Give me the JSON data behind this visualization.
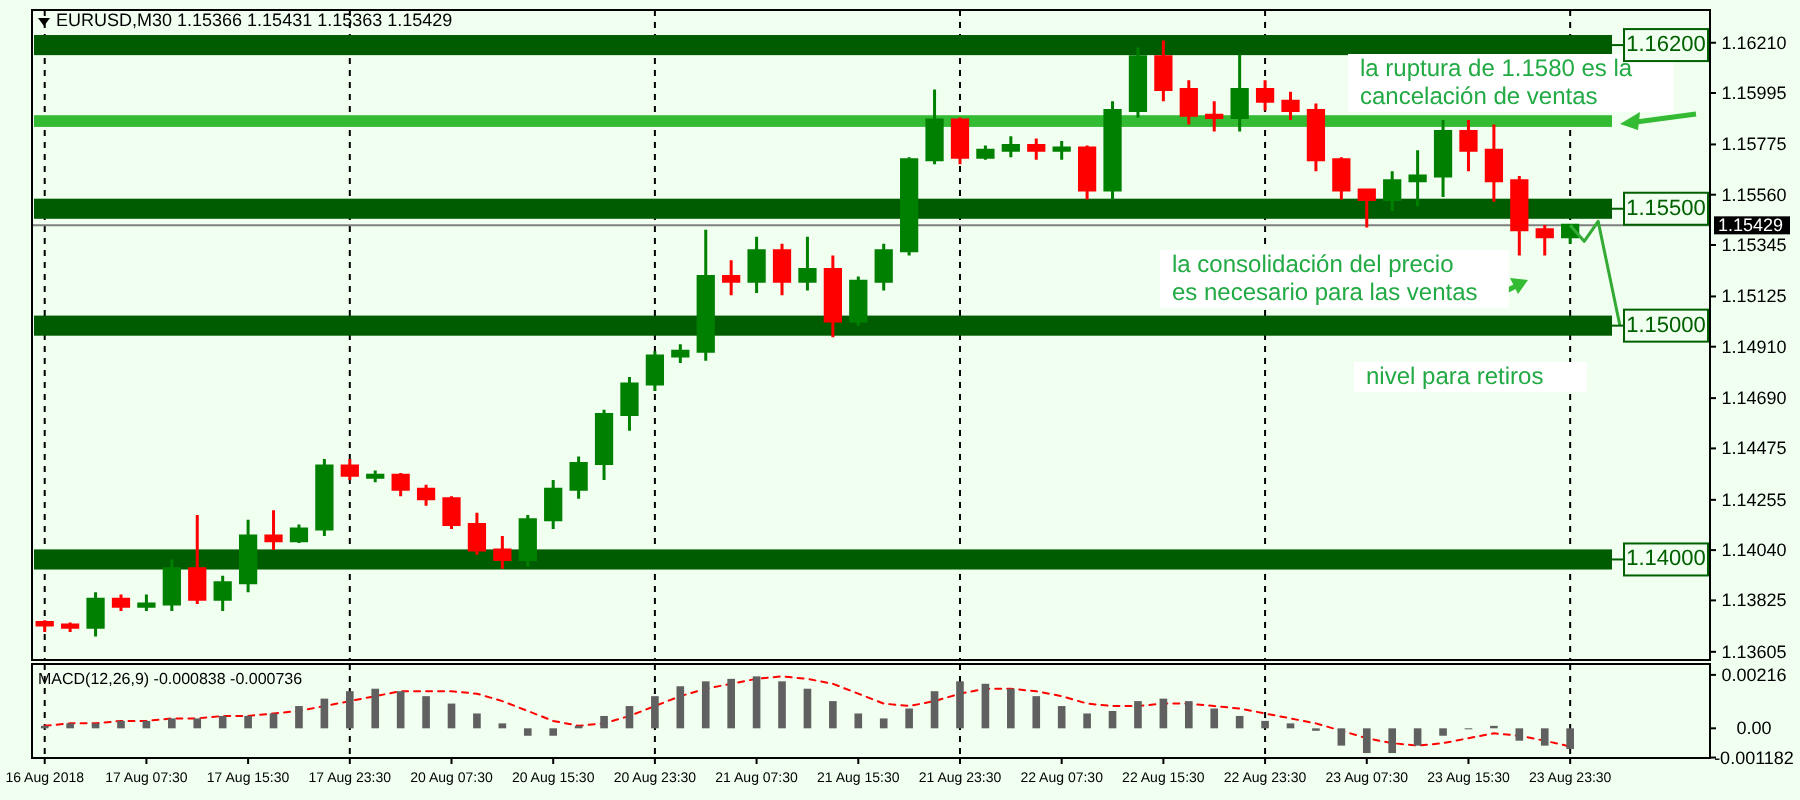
{
  "chart_data": [
    {
      "type": "candlestick",
      "title": "EURUSD,M30 1.15366 1.15431 1.15363 1.15429",
      "categories": [
        "16 Aug 2018",
        null,
        null,
        null,
        "17 Aug 07:30",
        null,
        null,
        null,
        "17 Aug 15:30",
        null,
        null,
        null,
        "17 Aug 23:30",
        null,
        null,
        null,
        "20 Aug 07:30",
        null,
        null,
        null,
        "20 Aug 15:30",
        null,
        null,
        null,
        "20 Aug 23:30",
        null,
        null,
        null,
        "21 Aug 07:30",
        null,
        null,
        null,
        "21 Aug 15:30",
        null,
        null,
        null,
        "21 Aug 23:30",
        null,
        null,
        null,
        "22 Aug 07:30",
        null,
        null,
        null,
        "22 Aug 15:30",
        null,
        null,
        null,
        "22 Aug 23:30",
        null,
        null,
        null,
        "23 Aug 07:30",
        null,
        null,
        null,
        "23 Aug 15:30",
        null,
        null,
        null,
        "23 Aug 23:30",
        null,
        null,
        null,
        null,
        null
      ],
      "ohlc": [
        [
          1.1373,
          1.1374,
          1.1369,
          1.1372
        ],
        [
          1.1372,
          1.1373,
          1.1369,
          1.1371
        ],
        [
          1.1371,
          1.1386,
          1.1367,
          1.1383
        ],
        [
          1.1383,
          1.1385,
          1.1378,
          1.138
        ],
        [
          1.138,
          1.1385,
          1.1378,
          1.1381
        ],
        [
          1.1381,
          1.14,
          1.1378,
          1.1396
        ],
        [
          1.1396,
          1.1419,
          1.1381,
          1.1383
        ],
        [
          1.1383,
          1.1393,
          1.1378,
          1.139
        ],
        [
          1.139,
          1.1417,
          1.1386,
          1.141
        ],
        [
          1.141,
          1.1421,
          1.1404,
          1.1408
        ],
        [
          1.1408,
          1.1415,
          1.1407,
          1.1413
        ],
        [
          1.1413,
          1.1443,
          1.141,
          1.144
        ],
        [
          1.144,
          1.1443,
          1.1434,
          1.1436
        ],
        [
          1.1436,
          1.1438,
          1.1433,
          1.1436
        ],
        [
          1.1436,
          1.1437,
          1.1427,
          1.143
        ],
        [
          1.143,
          1.1432,
          1.1423,
          1.1426
        ],
        [
          1.1426,
          1.1427,
          1.1413,
          1.1415
        ],
        [
          1.1415,
          1.142,
          1.1402,
          1.1404
        ],
        [
          1.1404,
          1.141,
          1.1396,
          1.14
        ],
        [
          1.14,
          1.1419,
          1.1397,
          1.1417
        ],
        [
          1.1417,
          1.1434,
          1.1413,
          1.143
        ],
        [
          1.143,
          1.1444,
          1.1426,
          1.1441
        ],
        [
          1.1441,
          1.1464,
          1.1434,
          1.1462
        ],
        [
          1.1462,
          1.1478,
          1.1455,
          1.1475
        ],
        [
          1.1475,
          1.1489,
          1.1472,
          1.1487
        ],
        [
          1.1487,
          1.1492,
          1.1484,
          1.1489
        ],
        [
          1.1489,
          1.1541,
          1.1485,
          1.1521
        ],
        [
          1.1521,
          1.1528,
          1.1513,
          1.1519
        ],
        [
          1.1519,
          1.1538,
          1.1514,
          1.1532
        ],
        [
          1.1532,
          1.1535,
          1.1513,
          1.1519
        ],
        [
          1.1519,
          1.1538,
          1.1515,
          1.1524
        ],
        [
          1.1524,
          1.153,
          1.1495,
          1.1502
        ],
        [
          1.1502,
          1.1521,
          1.15,
          1.1519
        ],
        [
          1.1519,
          1.1535,
          1.1515,
          1.1532
        ],
        [
          1.1532,
          1.1572,
          1.153,
          1.1571
        ],
        [
          1.1571,
          1.1601,
          1.1569,
          1.1588
        ],
        [
          1.1588,
          1.1589,
          1.1569,
          1.1572
        ],
        [
          1.1572,
          1.1577,
          1.1571,
          1.1575
        ],
        [
          1.1575,
          1.1581,
          1.1572,
          1.1577
        ],
        [
          1.1577,
          1.158,
          1.1571,
          1.1575
        ],
        [
          1.1575,
          1.1579,
          1.1571,
          1.1576
        ],
        [
          1.1576,
          1.1577,
          1.1554,
          1.1558
        ],
        [
          1.1558,
          1.1596,
          1.1554,
          1.1592
        ],
        [
          1.1592,
          1.1619,
          1.1589,
          1.1615
        ],
        [
          1.1615,
          1.1622,
          1.1596,
          1.1601
        ],
        [
          1.1601,
          1.1605,
          1.1586,
          1.159
        ],
        [
          1.159,
          1.1596,
          1.1583,
          1.1589
        ],
        [
          1.1589,
          1.1616,
          1.1583,
          1.1601
        ],
        [
          1.1601,
          1.1605,
          1.1592,
          1.1596
        ],
        [
          1.1596,
          1.16,
          1.1588,
          1.1592
        ],
        [
          1.1592,
          1.1595,
          1.1566,
          1.1571
        ],
        [
          1.1571,
          1.1572,
          1.1554,
          1.1558
        ],
        [
          1.1558,
          1.1558,
          1.1542,
          1.1554
        ],
        [
          1.1554,
          1.1566,
          1.1549,
          1.1562
        ],
        [
          1.1562,
          1.1575,
          1.1551,
          1.1564
        ],
        [
          1.1564,
          1.1588,
          1.1555,
          1.1583
        ],
        [
          1.1583,
          1.1588,
          1.1566,
          1.1575
        ],
        [
          1.1575,
          1.1586,
          1.1553,
          1.1562
        ],
        [
          1.1562,
          1.1564,
          1.153,
          1.1541
        ],
        [
          1.1541,
          1.1543,
          1.153,
          1.1538
        ],
        [
          1.1538,
          1.1543,
          1.1535,
          1.15429
        ],
        null,
        null,
        null,
        null,
        null
      ],
      "colors": [
        "#ff0000",
        "#ff0000",
        "#008000",
        "#ff0000",
        "#008000",
        "#008000",
        "#ff0000",
        "#008000",
        "#008000",
        "#ff0000",
        "#008000",
        "#008000",
        "#ff0000",
        "#008000",
        "#ff0000",
        "#ff0000",
        "#ff0000",
        "#ff0000",
        "#ff0000",
        "#008000",
        "#008000",
        "#008000",
        "#008000",
        "#008000",
        "#008000",
        "#008000",
        "#008000",
        "#ff0000",
        "#008000",
        "#ff0000",
        "#008000",
        "#ff0000",
        "#008000",
        "#008000",
        "#008000",
        "#008000",
        "#ff0000",
        "#008000",
        "#008000",
        "#ff0000",
        "#008000",
        "#ff0000",
        "#008000",
        "#008000",
        "#ff0000",
        "#ff0000",
        "#ff0000",
        "#008000",
        "#ff0000",
        "#ff0000",
        "#ff0000",
        "#ff0000",
        "#ff0000",
        "#008000",
        "#008000",
        "#008000",
        "#ff0000",
        "#ff0000",
        "#ff0000",
        "#ff0000",
        "#008000",
        null,
        null,
        null,
        null,
        null
      ],
      "ylim": [
        1.1357,
        1.1635
      ],
      "yticks": [
        {
          "value": 1.1621,
          "label": "1.16210"
        },
        {
          "value": 1.15995,
          "label": "1.15995"
        },
        {
          "value": 1.15775,
          "label": "1.15775"
        },
        {
          "value": 1.1556,
          "label": "1.15560"
        },
        {
          "value": 1.15345,
          "label": "1.15345"
        },
        {
          "value": 1.15125,
          "label": "1.15125"
        },
        {
          "value": 1.1491,
          "label": "1.14910"
        },
        {
          "value": 1.1469,
          "label": "1.14690"
        },
        {
          "value": 1.14475,
          "label": "1.14475"
        },
        {
          "value": 1.14255,
          "label": "1.14255"
        },
        {
          "value": 1.1404,
          "label": "1.14040"
        },
        {
          "value": 1.13825,
          "label": "1.13825"
        },
        {
          "value": 1.13605,
          "label": "1.13605"
        }
      ],
      "tick_labels": "y",
      "bands": [
        {
          "axis": "y",
          "from": 1.16157,
          "to": 1.16243,
          "label": "1.16200",
          "color": "#005c00"
        },
        {
          "axis": "y",
          "from": 1.15457,
          "to": 1.15543,
          "label": "1.15500",
          "color": "#005c00"
        },
        {
          "axis": "y",
          "from": 1.14957,
          "to": 1.15043,
          "label": "1.15000",
          "color": "#005c00"
        },
        {
          "axis": "y",
          "from": 1.13957,
          "to": 1.14043,
          "label": "1.14000",
          "color": "#005c00"
        },
        {
          "axis": "y",
          "from": 1.1585,
          "to": 1.159,
          "color": "#33bb33"
        }
      ],
      "ref_lines": [
        {
          "axis": "y",
          "value": 1.15429,
          "label": "1.15429",
          "color": "#808080",
          "line_style": "solid"
        },
        {
          "axis": "x",
          "value": "16 Aug 2018",
          "color": "#000000",
          "line_style": "dashed"
        },
        {
          "axis": "x",
          "value": "17 Aug 23:30",
          "color": "#000000",
          "line_style": "dashed"
        },
        {
          "axis": "x",
          "value": "20 Aug 23:30",
          "color": "#000000",
          "line_style": "dashed"
        },
        {
          "axis": "x",
          "value": "21 Aug 23:30",
          "color": "#000000",
          "line_style": "dashed"
        },
        {
          "axis": "x",
          "value": "22 Aug 23:30",
          "color": "#000000",
          "line_style": "dashed"
        },
        {
          "axis": "x",
          "value": "23 Aug 23:30",
          "color": "#000000",
          "line_style": "dashed"
        }
      ],
      "annotations": [
        "la ruptura de 1.1580 es la cancelación de ventas",
        "la consolidación del precio es necesario para las ventas",
        "nivel para retiros"
      ]
    },
    {
      "type": "bar",
      "title": "MACD(12,26,9) -0.000838 -0.000736",
      "categories": [
        "16 Aug 2018",
        null,
        null,
        null,
        "17 Aug 07:30",
        null,
        null,
        null,
        "17 Aug 15:30",
        null,
        null,
        null,
        "17 Aug 23:30",
        null,
        null,
        null,
        "20 Aug 07:30",
        null,
        null,
        null,
        "20 Aug 15:30",
        null,
        null,
        null,
        "20 Aug 23:30",
        null,
        null,
        null,
        "21 Aug 07:30",
        null,
        null,
        null,
        "21 Aug 15:30",
        null,
        null,
        null,
        "21 Aug 23:30",
        null,
        null,
        null,
        "22 Aug 07:30",
        null,
        null,
        null,
        "22 Aug 15:30",
        null,
        null,
        null,
        "22 Aug 23:30",
        null,
        null,
        null,
        "23 Aug 07:30",
        null,
        null,
        null,
        "23 Aug 15:30",
        null,
        null,
        null,
        "23 Aug 23:30",
        null,
        null,
        null,
        null,
        null
      ],
      "series": [
        {
          "color": "#606060",
          "values": [
            0.0001,
            0.0002,
            0.0002,
            0.0003,
            0.0003,
            0.0004,
            0.0004,
            0.0005,
            0.0005,
            0.0006,
            0.0009,
            0.0012,
            0.0015,
            0.0016,
            0.0015,
            0.0013,
            0.001,
            0.0006,
            0.0002,
            -0.0003,
            -0.0003,
            0.0001,
            0.0005,
            0.0009,
            0.0013,
            0.0017,
            0.0019,
            0.002,
            0.0021,
            0.0019,
            0.0016,
            0.0011,
            0.0006,
            0.0004,
            0.0008,
            0.0015,
            0.0019,
            0.0018,
            0.0016,
            0.0013,
            0.0009,
            0.0006,
            0.0007,
            0.0011,
            0.0012,
            0.0011,
            0.0008,
            0.0005,
            0.0003,
            0.0002,
            -0.0001,
            -0.0007,
            -0.001,
            -0.001,
            -0.0007,
            -0.0003,
            0,
            0.0001,
            -0.0005,
            -0.0007,
            -0.000838,
            null,
            null,
            null,
            null,
            null
          ]
        },
        {
          "type": "line",
          "color": "#ff0000",
          "line_style": "dashed",
          "values": [
            0.0001,
            0.0002,
            0.0002,
            0.0003,
            0.0003,
            0.0004,
            0.0004,
            0.0005,
            0.0005,
            0.0006,
            0.0007,
            0.0009,
            0.0011,
            0.0013,
            0.0015,
            0.0015,
            0.0015,
            0.0014,
            0.0011,
            0.0007,
            0.0003,
            0.0001,
            0.0002,
            0.0005,
            0.0009,
            0.0013,
            0.0016,
            0.0018,
            0.002,
            0.0021,
            0.002,
            0.0018,
            0.0014,
            0.001,
            0.0009,
            0.0011,
            0.0014,
            0.0016,
            0.0016,
            0.0015,
            0.0013,
            0.001,
            0.0009,
            0.0009,
            0.001,
            0.001,
            0.0009,
            0.0008,
            0.0006,
            0.0004,
            0.0002,
            -0.0001,
            -0.0004,
            -0.0006,
            -0.0007,
            -0.0006,
            -0.0004,
            -0.0002,
            -0.0003,
            -0.0005,
            -0.000736,
            null,
            null,
            null,
            null,
            null
          ]
        }
      ],
      "ylim": [
        -0.0012,
        0.0026
      ],
      "yticks": [
        {
          "value": 0.00216,
          "label": "0.00216"
        },
        {
          "value": 0,
          "label": "0.00"
        },
        {
          "value": -0.001182,
          "label": "-0.001182"
        }
      ],
      "ref_lines": [
        {
          "axis": "x",
          "value": "16 Aug 2018",
          "color": "#000000",
          "line_style": "dashed"
        },
        {
          "axis": "x",
          "value": "17 Aug 23:30",
          "color": "#000000",
          "line_style": "dashed"
        },
        {
          "axis": "x",
          "value": "20 Aug 23:30",
          "color": "#000000",
          "line_style": "dashed"
        },
        {
          "axis": "x",
          "value": "21 Aug 23:30",
          "color": "#000000",
          "line_style": "dashed"
        },
        {
          "axis": "x",
          "value": "22 Aug 23:30",
          "color": "#000000",
          "line_style": "dashed"
        },
        {
          "axis": "x",
          "value": "23 Aug 23:30",
          "color": "#000000",
          "line_style": "dashed"
        }
      ]
    }
  ]
}
